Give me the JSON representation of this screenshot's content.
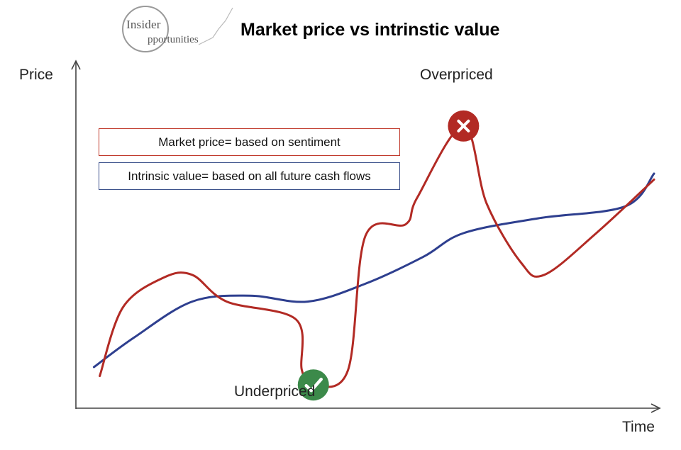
{
  "logo": {
    "line1": "Insider",
    "line2": "pportunities"
  },
  "chart_data": {
    "type": "line",
    "title": "Market price vs intrinstic value",
    "xlabel": "Time",
    "ylabel": "Price",
    "xlim": [
      0,
      100
    ],
    "ylim": [
      0,
      100
    ],
    "legend": [
      {
        "text": "Market price= based on sentiment",
        "color": "#b22a24"
      },
      {
        "text": "Intrinsic value= based on all future cash flows",
        "color": "#2e3f8f"
      }
    ],
    "series": [
      {
        "key": "market",
        "color": "#b22a24",
        "points": [
          [
            4,
            7
          ],
          [
            8,
            30
          ],
          [
            15,
            40
          ],
          [
            20,
            41
          ],
          [
            26,
            32
          ],
          [
            38,
            26
          ],
          [
            39,
            9
          ],
          [
            41,
            4
          ],
          [
            47,
            9
          ],
          [
            50,
            54
          ],
          [
            57,
            58
          ],
          [
            59,
            67
          ],
          [
            67,
            91
          ],
          [
            71,
            65
          ],
          [
            77,
            45
          ],
          [
            81,
            41
          ],
          [
            90,
            55
          ],
          [
            100,
            73
          ]
        ]
      },
      {
        "key": "intrinsic",
        "color": "#2e3f8f",
        "points": [
          [
            3,
            10
          ],
          [
            10,
            20
          ],
          [
            20,
            32
          ],
          [
            30,
            34
          ],
          [
            40,
            32
          ],
          [
            50,
            38
          ],
          [
            60,
            47
          ],
          [
            67,
            55
          ],
          [
            80,
            60
          ],
          [
            95,
            64
          ],
          [
            100,
            75
          ]
        ]
      }
    ],
    "annotations": [
      {
        "text": "Overpriced",
        "x": 67,
        "y": 91,
        "marker": "cross",
        "color": "#b22a24"
      },
      {
        "text": "Underpriced",
        "x": 41,
        "y": 4,
        "marker": "check",
        "color": "#3c8a4a"
      }
    ]
  }
}
